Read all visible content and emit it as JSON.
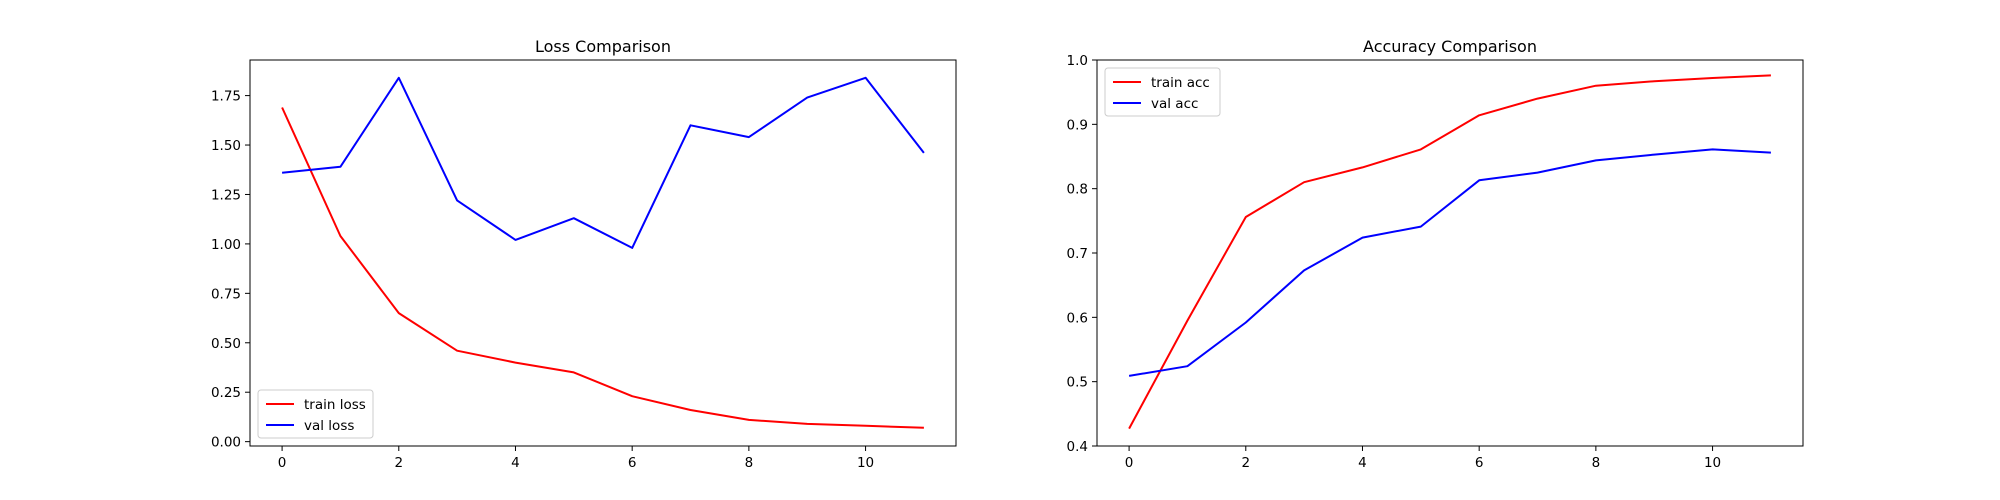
{
  "chart_data": [
    {
      "type": "line",
      "title": "Loss Comparison",
      "xlabel": "",
      "ylabel": "",
      "xlim": [
        -0.55,
        11.55
      ],
      "ylim": [
        -0.022,
        1.93
      ],
      "xticks": [
        0,
        2,
        4,
        6,
        8,
        10
      ],
      "yticks": [
        0.0,
        0.25,
        0.5,
        0.75,
        1.0,
        1.25,
        1.5,
        1.75
      ],
      "ytick_labels": [
        "0.00",
        "0.25",
        "0.50",
        "0.75",
        "1.00",
        "1.25",
        "1.50",
        "1.75"
      ],
      "legend_position": "lower-left",
      "grid": false,
      "x": [
        0,
        1,
        2,
        3,
        4,
        5,
        6,
        7,
        8,
        9,
        10,
        11
      ],
      "series": [
        {
          "name": "train loss",
          "color": "#ff0000",
          "values": [
            1.69,
            1.04,
            0.65,
            0.46,
            0.4,
            0.35,
            0.23,
            0.16,
            0.11,
            0.09,
            0.08,
            0.07
          ]
        },
        {
          "name": "val loss",
          "color": "#0000ff",
          "values": [
            1.36,
            1.39,
            1.84,
            1.22,
            1.02,
            1.13,
            0.98,
            1.6,
            1.54,
            1.74,
            1.84,
            1.46
          ]
        }
      ]
    },
    {
      "type": "line",
      "title": "Accuracy Comparison",
      "xlabel": "",
      "ylabel": "",
      "xlim": [
        -0.55,
        11.55
      ],
      "ylim": [
        0.4,
        1.0
      ],
      "xticks": [
        0,
        2,
        4,
        6,
        8,
        10
      ],
      "yticks": [
        0.4,
        0.5,
        0.6,
        0.7,
        0.8,
        0.9,
        1.0
      ],
      "ytick_labels": [
        "0.4",
        "0.5",
        "0.6",
        "0.7",
        "0.8",
        "0.9",
        "1.0"
      ],
      "legend_position": "upper-left",
      "grid": false,
      "x": [
        0,
        1,
        2,
        3,
        4,
        5,
        6,
        7,
        8,
        9,
        10,
        11
      ],
      "series": [
        {
          "name": "train acc",
          "color": "#ff0000",
          "values": [
            0.427,
            0.595,
            0.756,
            0.81,
            0.833,
            0.861,
            0.914,
            0.94,
            0.96,
            0.967,
            0.972,
            0.976
          ]
        },
        {
          "name": "val acc",
          "color": "#0000ff",
          "values": [
            0.509,
            0.524,
            0.592,
            0.673,
            0.724,
            0.741,
            0.813,
            0.825,
            0.844,
            0.853,
            0.861,
            0.856
          ]
        }
      ]
    }
  ]
}
